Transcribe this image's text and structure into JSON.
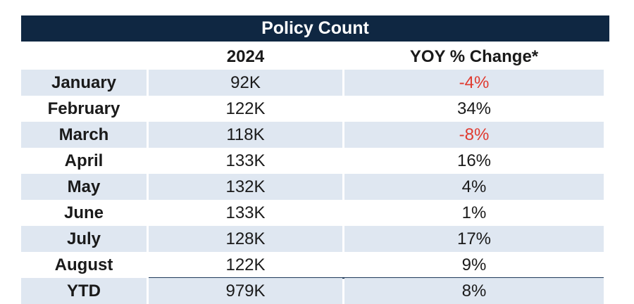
{
  "chart_data": {
    "type": "table",
    "title": "Policy Count",
    "columns": [
      "",
      "2024",
      "YOY % Change*"
    ],
    "rows": [
      {
        "month": "January",
        "value": "92K",
        "yoy": "-4%",
        "negative": true
      },
      {
        "month": "February",
        "value": "122K",
        "yoy": "34%",
        "negative": false
      },
      {
        "month": "March",
        "value": "118K",
        "yoy": "-8%",
        "negative": true
      },
      {
        "month": "April",
        "value": "133K",
        "yoy": "16%",
        "negative": false
      },
      {
        "month": "May",
        "value": "132K",
        "yoy": "4%",
        "negative": false
      },
      {
        "month": "June",
        "value": "133K",
        "yoy": "1%",
        "negative": false
      },
      {
        "month": "July",
        "value": "128K",
        "yoy": "17%",
        "negative": false
      },
      {
        "month": "August",
        "value": "122K",
        "yoy": "9%",
        "negative": false
      }
    ],
    "total": {
      "month": "YTD",
      "value": "979K",
      "yoy": "8%",
      "negative": false
    },
    "colors": {
      "header_bg": "#0f2742",
      "shade": "#dfe7f1",
      "negative": "#e03a2f"
    }
  }
}
